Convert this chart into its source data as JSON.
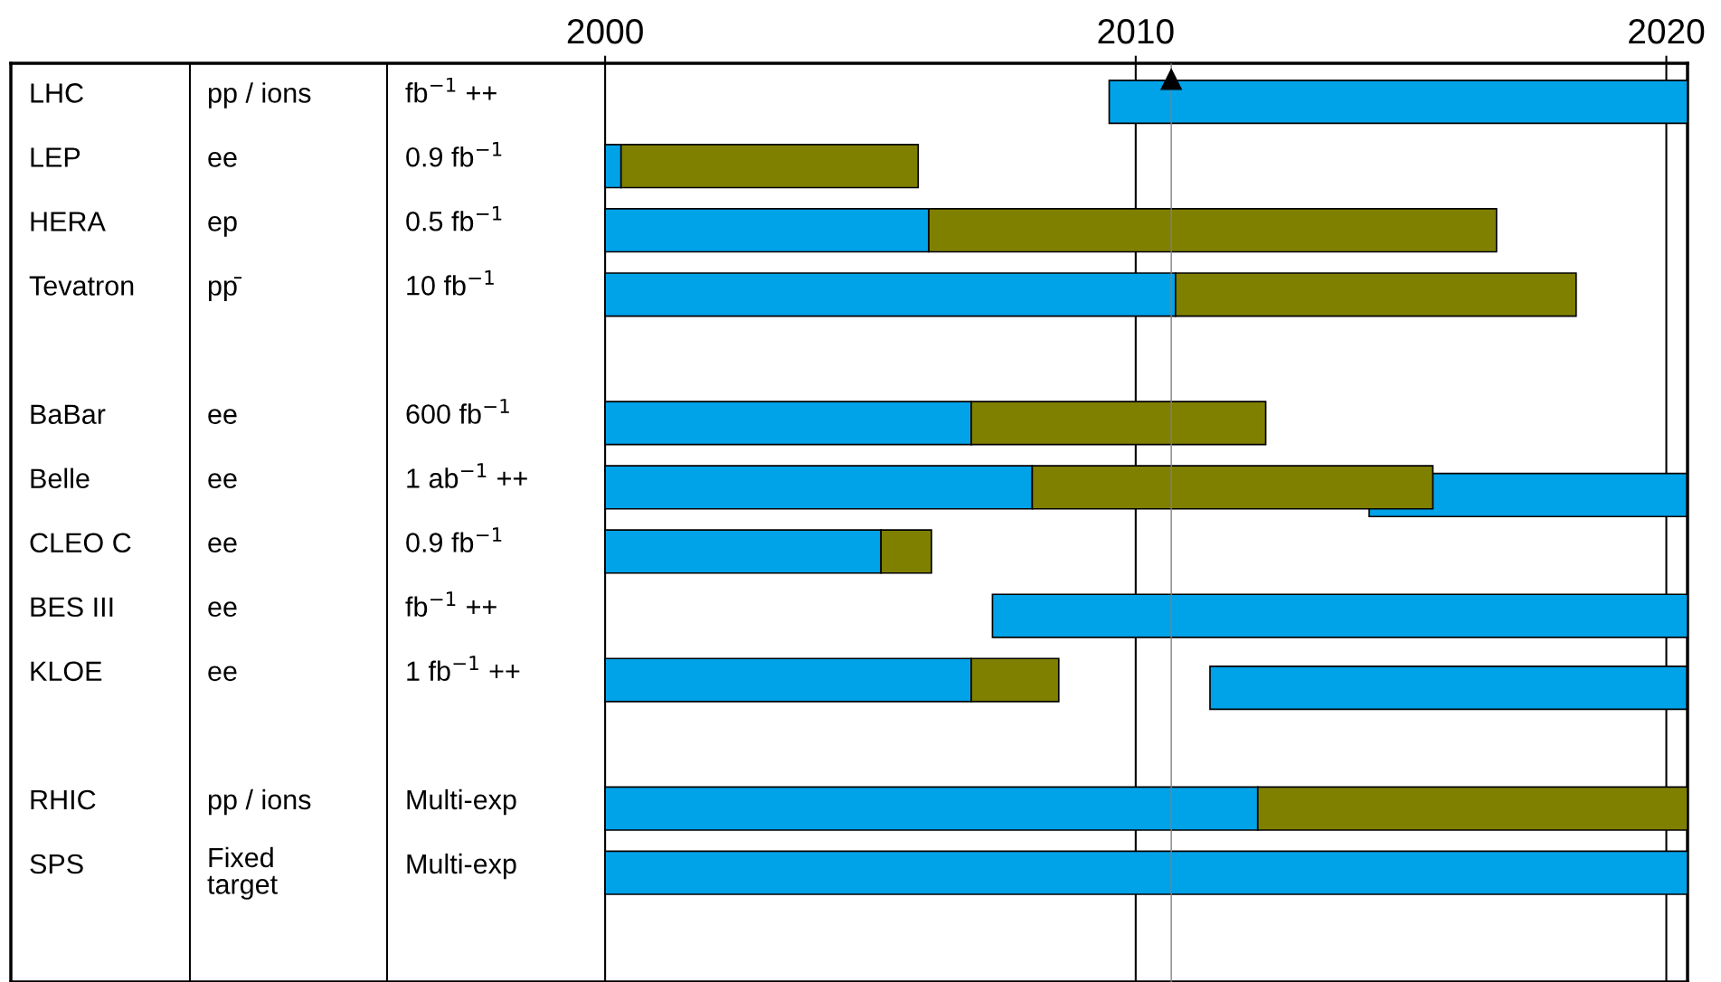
{
  "chart_data": {
    "type": "bar",
    "orientation": "horizontal",
    "categories": [
      "LHC",
      "LEP",
      "HERA",
      "Tevatron",
      null,
      "BaBar",
      "Belle",
      "CLEO C",
      "BES III",
      "KLOE",
      null,
      "RHIC",
      "SPS"
    ],
    "series": [
      {
        "axis": "x2",
        "color": "#00a2e8",
        "base": [
          2009.5,
          2000,
          2000,
          2000,
          null,
          2000,
          2000,
          2000,
          2007.3,
          2000,
          null,
          2000,
          2000
        ],
        "values": [
          10.9,
          0.3,
          6.1,
          10.75,
          null,
          6.9,
          8.05,
          5.2,
          13.1,
          6.9,
          null,
          12.3,
          20.4
        ]
      },
      {
        "axis": "x2",
        "color": "#808000",
        "base": [
          null,
          2000.3,
          2006.1,
          2010.75,
          null,
          2006.9,
          2008.05,
          2005.2,
          null,
          2006.9,
          null,
          2012.3,
          null
        ],
        "values": [
          null,
          5.6,
          10.7,
          7.55,
          null,
          5.55,
          7.55,
          0.95,
          null,
          1.65,
          null,
          8.1,
          null
        ]
      },
      {
        "axis": "x2",
        "color": "#00a2e8",
        "base": [
          null,
          null,
          null,
          null,
          null,
          null,
          2014.4,
          null,
          null,
          2011.4,
          null,
          null,
          null
        ],
        "values": [
          null,
          null,
          null,
          null,
          null,
          null,
          6.0,
          null,
          null,
          9.0,
          null,
          null,
          null
        ]
      }
    ],
    "x2lim": [
      1988.8,
      2020.4
    ],
    "x2ticks": [
      {
        "value": 2000,
        "label": "2000"
      },
      {
        "value": 2010,
        "label": "2010"
      },
      {
        "value": 2020,
        "label": "2020"
      }
    ],
    "grid": "x",
    "ref_lines": [
      {
        "axis": "x2",
        "value": 2010.67,
        "color": "#808080"
      }
    ],
    "annotations": [
      "pp / ions",
      "fb$^{−1}$ ++",
      "ee",
      "0.9 fb$^{−1}$",
      "ep",
      "0.5 fb$^{−1}$",
      "pp̄",
      "10 fb$^{−1}$",
      "ee",
      "600 fb$^{−1}$",
      "ee",
      "1 ab$^{−1}$ ++",
      "ee",
      "0.9 fb$^{−1}$",
      "ee",
      "fb$^{−1}$ ++",
      "ee",
      "1 fb$^{−1}$ ++",
      "pp / ions",
      "Multi-exp",
      "Fixed\ntarget",
      "Multi-exp"
    ]
  }
}
